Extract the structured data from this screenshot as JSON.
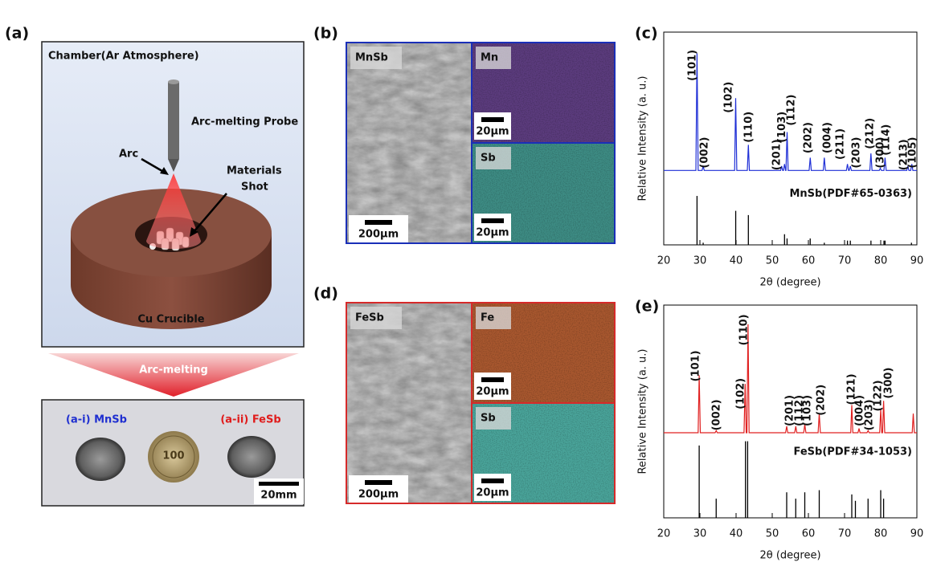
{
  "panel_a": {
    "label": "(a)",
    "chamber": "Chamber(Ar Atmosphere)",
    "probe": "Arc-melting Probe",
    "arc": "Arc",
    "shot": [
      "Materials",
      "Shot"
    ],
    "crucible": "Cu Crucible",
    "process": "Arc-melting",
    "samples": [
      {
        "label": "(a-i) MnSb",
        "color": "#1f2fd0"
      },
      {
        "label": "(a-ii) FeSb",
        "color": "#e01b1b"
      }
    ],
    "coin": "100",
    "scale": "20mm"
  },
  "panel_b": {
    "label": "(b)",
    "images": [
      "MnSb",
      "Mn",
      "Sb"
    ],
    "scales": [
      "200μm",
      "20μm",
      "20μm"
    ]
  },
  "panel_d": {
    "label": "(d)",
    "images": [
      "FeSb",
      "Fe",
      "Sb"
    ],
    "scales": [
      "200μm",
      "20μm",
      "20μm"
    ]
  },
  "chart_data": [
    {
      "type": "line",
      "label": "(c)",
      "xlabel": "2θ (degree)",
      "ylabel": "Relative Intensity (a. u.)",
      "xlim": [
        20,
        90
      ],
      "xticks": [
        20,
        30,
        40,
        50,
        60,
        70,
        80,
        90
      ],
      "ylim": [
        0,
        100
      ],
      "series": [
        {
          "color": "#1f2fd6",
          "x": [
            20,
            28.9,
            29.2,
            29.5,
            30.6,
            30.9,
            31.2,
            39.6,
            39.9,
            40.2,
            43.1,
            43.4,
            43.7,
            52.3,
            52.6,
            52.9,
            53.1,
            53.4,
            53.7,
            53.8,
            54.1,
            54.4,
            60.2,
            60.5,
            60.8,
            64.1,
            64.4,
            64.7,
            70.5,
            70.8,
            71.1,
            71.3,
            71.6,
            71.9,
            77.0,
            77.3,
            77.6,
            79.6,
            79.9,
            80.2,
            80.9,
            81.2,
            81.5,
            87.2,
            87.5,
            87.8,
            88.3,
            88.6,
            88.9,
            90
          ],
          "values": [
            35,
            35,
            90,
            35,
            35,
            37,
            35,
            35,
            69,
            35,
            35,
            47,
            35,
            35,
            37,
            35,
            35,
            38,
            35,
            35,
            53,
            35,
            35,
            41,
            35,
            35,
            41,
            35,
            35,
            38,
            35,
            35,
            37,
            35,
            35,
            43,
            35,
            35,
            36,
            35,
            35,
            41,
            35,
            35,
            37,
            35,
            35,
            38,
            35,
            35
          ]
        }
      ],
      "reference": {
        "name": "MnSb(PDF#65-0363)",
        "color": "#000000",
        "x": [
          29.2,
          30.9,
          39.9,
          43.4,
          53.4,
          54.1,
          60.5,
          64.4,
          70.8,
          71.6,
          77.3,
          80.9,
          81.2,
          88.5
        ],
        "values": [
          23,
          1,
          16,
          14,
          5,
          3,
          3,
          1,
          2,
          2,
          2,
          2,
          2,
          1
        ]
      },
      "annotations": [
        {
          "label": "(101)",
          "x": 28,
          "y": 77
        },
        {
          "label": "(002)",
          "x": 31.3,
          "y": 36
        },
        {
          "label": "(102)",
          "x": 38,
          "y": 62
        },
        {
          "label": "(110)",
          "x": 43.6,
          "y": 48
        },
        {
          "label": "(201)",
          "x": 51.3,
          "y": 35
        },
        {
          "label": "(103)",
          "x": 52.8,
          "y": 48
        },
        {
          "label": "(112)",
          "x": 55.3,
          "y": 56
        },
        {
          "label": "(202)",
          "x": 60,
          "y": 43
        },
        {
          "label": "(004)",
          "x": 65.3,
          "y": 43
        },
        {
          "label": "(211)",
          "x": 68.9,
          "y": 40
        },
        {
          "label": "(203)",
          "x": 73.3,
          "y": 36
        },
        {
          "label": "(212)",
          "x": 77.1,
          "y": 45
        },
        {
          "label": "(300)",
          "x": 80,
          "y": 36
        },
        {
          "label": "(114)",
          "x": 81.5,
          "y": 42
        },
        {
          "label": "(213)",
          "x": 86.4,
          "y": 35
        },
        {
          "label": "(105)",
          "x": 88.9,
          "y": 36
        }
      ]
    },
    {
      "type": "line",
      "label": "(e)",
      "xlabel": "2θ (degree)",
      "ylabel": "Relative Intensity (a. u.)",
      "xlim": [
        20,
        90
      ],
      "xticks": [
        20,
        30,
        40,
        50,
        60,
        70,
        80,
        90
      ],
      "ylim": [
        0,
        100
      ],
      "series": [
        {
          "color": "#e02020",
          "x": [
            20,
            29.5,
            29.8,
            30.1,
            34.2,
            34.5,
            34.8,
            42.2,
            42.5,
            42.8,
            43.0,
            43.3,
            43.6,
            53.7,
            54.0,
            54.3,
            56.2,
            56.5,
            56.8,
            58.7,
            59.0,
            59.3,
            62.7,
            63.0,
            63.3,
            71.7,
            72.0,
            72.3,
            73.7,
            74.0,
            74.3,
            76.2,
            76.5,
            76.8,
            79.7,
            80.0,
            80.3,
            80.5,
            80.8,
            81.1,
            88.7,
            89.0,
            89.3,
            90
          ],
          "values": [
            40,
            40,
            67,
            40,
            40,
            41,
            40,
            40,
            63,
            40,
            40,
            91,
            40,
            40,
            43,
            40,
            40,
            43,
            40,
            40,
            44,
            40,
            40,
            49,
            40,
            40,
            53,
            40,
            40,
            42,
            40,
            40,
            41,
            40,
            40,
            51,
            40,
            40,
            55,
            40,
            40,
            49,
            40,
            40
          ]
        }
      ],
      "reference": {
        "name": "FeSb(PDF#34-1053)",
        "color": "#000000",
        "x": [
          29.8,
          34.5,
          42.6,
          43.2,
          54,
          56.5,
          59,
          63,
          72,
          73,
          76.5,
          80,
          80.8
        ],
        "values": [
          34,
          9,
          36,
          36,
          12,
          9,
          12,
          13,
          11,
          8,
          9,
          13,
          9
        ]
      },
      "annotations": [
        {
          "label": "(101)",
          "x": 28.9,
          "y": 64
        },
        {
          "label": "(002)",
          "x": 34.7,
          "y": 41
        },
        {
          "label": "(110)",
          "x": 42.2,
          "y": 81
        },
        {
          "label": "(102)",
          "x": 41.3,
          "y": 51
        },
        {
          "label": "(201)",
          "x": 54.9,
          "y": 43
        },
        {
          "label": "(112)",
          "x": 57.6,
          "y": 43
        },
        {
          "label": "(103)",
          "x": 59.8,
          "y": 43
        },
        {
          "label": "(202)",
          "x": 63.6,
          "y": 48
        },
        {
          "label": "(121)",
          "x": 72,
          "y": 53
        },
        {
          "label": "(004)",
          "x": 74.2,
          "y": 43
        },
        {
          "label": "(203)",
          "x": 76.9,
          "y": 41
        },
        {
          "label": "(122)",
          "x": 79.3,
          "y": 50
        },
        {
          "label": "(300)",
          "x": 82.2,
          "y": 56
        }
      ]
    }
  ]
}
